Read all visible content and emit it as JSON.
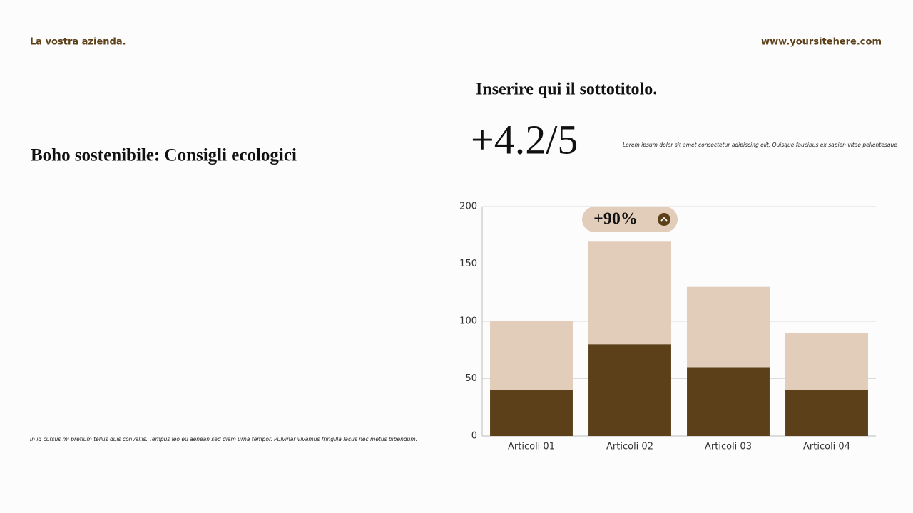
{
  "header": {
    "company": "La vostra azienda.",
    "website": "www.yoursitehere.com"
  },
  "title": "Boho sostenibile: Consigli ecologici",
  "subtitle": "Inserire qui il sottotitolo.",
  "rating": "+4.2/5",
  "description": "Lorem ipsum dolor sit amet consectetur adipiscing elit. Quisque faucibus ex sapien vitae pellentesque",
  "footnote": "In id cursus mi pretium tellus duis convallis. Tempus leo eu aenean sed diam urna tempor. Pulvinar vivamus fringilla lacus nec metus bibendum.",
  "chart_data": {
    "type": "bar",
    "stacked": true,
    "categories": [
      "Articoli 01",
      "Articoli 02",
      "Articoli 03",
      "Articoli 04"
    ],
    "series": [
      {
        "color": "#5b4019",
        "values": [
          40,
          80,
          60,
          40
        ]
      },
      {
        "color": "#e2ccba",
        "values": [
          60,
          90,
          70,
          50
        ]
      }
    ],
    "ylim": [
      0,
      200
    ],
    "yticks": [
      0,
      50,
      100,
      150,
      200
    ],
    "grid": true,
    "annotation": "+90%"
  }
}
